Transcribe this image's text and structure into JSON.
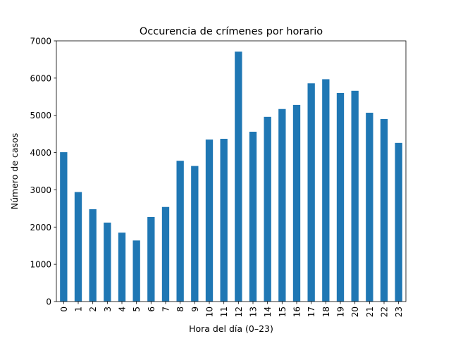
{
  "chart_data": {
    "type": "bar",
    "title": "Occurencia de crímenes por horario",
    "xlabel": "Hora del día (0–23)",
    "ylabel": "Número de casos",
    "categories": [
      "0",
      "1",
      "2",
      "3",
      "4",
      "5",
      "6",
      "7",
      "8",
      "9",
      "10",
      "11",
      "12",
      "13",
      "14",
      "15",
      "16",
      "17",
      "18",
      "19",
      "20",
      "21",
      "22",
      "23"
    ],
    "values": [
      4010,
      2940,
      2480,
      2120,
      1850,
      1640,
      2270,
      2540,
      3780,
      3640,
      4350,
      4370,
      6710,
      4560,
      4960,
      5170,
      5280,
      5860,
      5970,
      5600,
      5660,
      5070,
      4900,
      4260
    ],
    "ylim": [
      0,
      7000
    ],
    "yticks": [
      0,
      1000,
      2000,
      3000,
      4000,
      5000,
      6000,
      7000
    ],
    "bar_color": "#1f77b4",
    "grid": false,
    "legend": "none"
  }
}
